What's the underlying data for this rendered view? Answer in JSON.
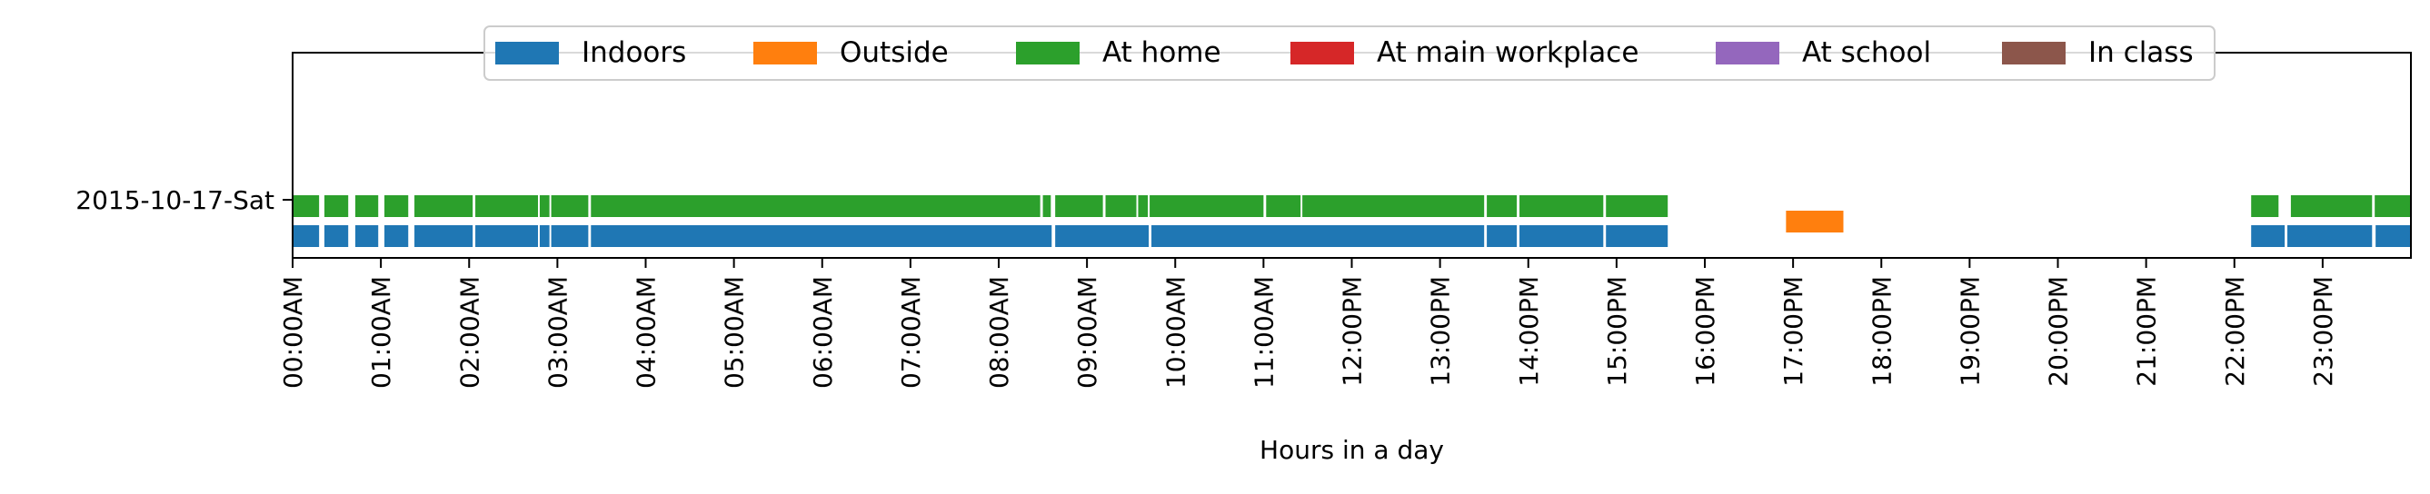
{
  "chart_data": {
    "type": "bar",
    "subtype": "horizontal-timeline",
    "xlabel": "Hours in a day",
    "ylabel": "",
    "xlim": [
      0,
      24
    ],
    "grid": false,
    "legend_position": "top-center",
    "y_categories": [
      "2015-10-17-Sat"
    ],
    "x_tick_labels": [
      "00:00AM",
      "01:00AM",
      "02:00AM",
      "03:00AM",
      "04:00AM",
      "05:00AM",
      "06:00AM",
      "07:00AM",
      "08:00AM",
      "09:00AM",
      "10:00AM",
      "11:00AM",
      "12:00PM",
      "13:00PM",
      "14:00PM",
      "15:00PM",
      "16:00PM",
      "17:00PM",
      "18:00PM",
      "19:00PM",
      "20:00PM",
      "21:00PM",
      "22:00PM",
      "23:00PM"
    ],
    "series": [
      {
        "name": "Indoors",
        "color": "#1f77b4",
        "day": "2015-10-17-Sat",
        "intervals": [
          [
            0,
            0.3
          ],
          [
            0.36,
            0.63
          ],
          [
            0.71,
            0.97
          ],
          [
            1.04,
            1.31
          ],
          [
            1.38,
            2.04
          ],
          [
            2.07,
            2.78
          ],
          [
            2.8,
            2.91
          ],
          [
            2.93,
            3.35
          ],
          [
            3.38,
            8.6
          ],
          [
            8.64,
            9.7
          ],
          [
            9.73,
            13.5
          ],
          [
            13.53,
            13.87
          ],
          [
            13.9,
            14.85
          ],
          [
            14.88,
            15.58
          ],
          [
            22.19,
            22.57
          ],
          [
            22.6,
            23.56
          ],
          [
            23.6,
            24
          ]
        ]
      },
      {
        "name": "Outside",
        "color": "#ff7f0e",
        "day": "2015-10-17-Sat",
        "intervals": [
          [
            16.92,
            17.57
          ]
        ]
      },
      {
        "name": "At home",
        "color": "#2ca02c",
        "day": "2015-10-17-Sat",
        "intervals": [
          [
            0,
            0.3
          ],
          [
            0.36,
            0.63
          ],
          [
            0.71,
            0.97
          ],
          [
            1.04,
            1.31
          ],
          [
            1.38,
            2.04
          ],
          [
            2.07,
            2.78
          ],
          [
            2.8,
            2.91
          ],
          [
            2.93,
            3.35
          ],
          [
            3.38,
            8.47
          ],
          [
            8.5,
            8.59
          ],
          [
            8.64,
            9.18
          ],
          [
            9.21,
            9.56
          ],
          [
            9.58,
            9.69
          ],
          [
            9.71,
            11.0
          ],
          [
            11.03,
            11.42
          ],
          [
            11.44,
            13.5
          ],
          [
            13.53,
            13.87
          ],
          [
            13.9,
            14.85
          ],
          [
            14.88,
            15.58
          ],
          [
            22.19,
            22.5
          ],
          [
            22.64,
            23.56
          ],
          [
            23.59,
            24
          ]
        ]
      },
      {
        "name": "At main workplace",
        "color": "#d62728",
        "day": "2015-10-17-Sat",
        "intervals": []
      },
      {
        "name": "At school",
        "color": "#9467bd",
        "day": "2015-10-17-Sat",
        "intervals": []
      },
      {
        "name": "In class",
        "color": "#8c564b",
        "day": "2015-10-17-Sat",
        "intervals": []
      }
    ]
  }
}
